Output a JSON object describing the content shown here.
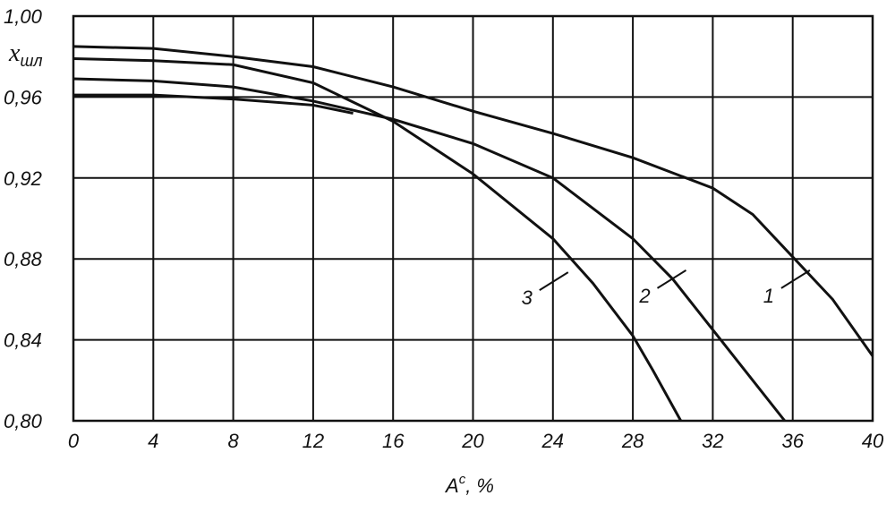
{
  "chart_data": {
    "type": "line",
    "xlabel": "A",
    "xlabel_sup": "c",
    "xlabel_unit": ", %",
    "ylabel": "x",
    "ylabel_sub": "шл",
    "xlim": [
      0,
      40
    ],
    "ylim": [
      0.8,
      1.0
    ],
    "xticks": [
      0,
      4,
      8,
      12,
      16,
      20,
      24,
      28,
      32,
      36,
      40
    ],
    "yticks": [
      {
        "value": 0.8,
        "label": "0,80"
      },
      {
        "value": 0.84,
        "label": "0,84"
      },
      {
        "value": 0.88,
        "label": "0,88"
      },
      {
        "value": 0.92,
        "label": "0,92"
      },
      {
        "value": 0.96,
        "label": "0,96"
      },
      {
        "value": 1.0,
        "label": "1,00"
      }
    ],
    "grid": true,
    "color": "#111111",
    "series": [
      {
        "x": [
          0,
          4,
          8,
          12,
          16,
          20,
          24,
          28,
          32,
          34,
          36,
          38,
          40
        ],
        "values": [
          0.985,
          0.984,
          0.98,
          0.975,
          0.965,
          0.953,
          0.942,
          0.93,
          0.915,
          0.902,
          0.881,
          0.86,
          0.832
        ]
      },
      {
        "x": [
          0,
          4,
          8,
          12,
          16,
          20,
          24,
          28,
          30,
          32,
          34,
          35.6
        ],
        "values": [
          0.969,
          0.968,
          0.965,
          0.958,
          0.949,
          0.937,
          0.92,
          0.89,
          0.87,
          0.845,
          0.82,
          0.8
        ]
      },
      {
        "x": [
          0,
          4,
          8,
          12,
          16,
          20,
          24,
          26,
          28,
          29,
          30.4
        ],
        "values": [
          0.979,
          0.978,
          0.976,
          0.967,
          0.948,
          0.922,
          0.89,
          0.868,
          0.842,
          0.825,
          0.8
        ]
      },
      {
        "x": [
          0,
          4,
          8,
          12,
          14
        ],
        "values": [
          0.961,
          0.961,
          0.959,
          0.956,
          0.952
        ]
      }
    ],
    "annotations": [
      {
        "text": "1",
        "x": 34.8,
        "y": 0.862
      },
      {
        "text": "2",
        "x": 28.6,
        "y": 0.862
      },
      {
        "text": "3",
        "x": 22.7,
        "y": 0.861
      }
    ]
  }
}
